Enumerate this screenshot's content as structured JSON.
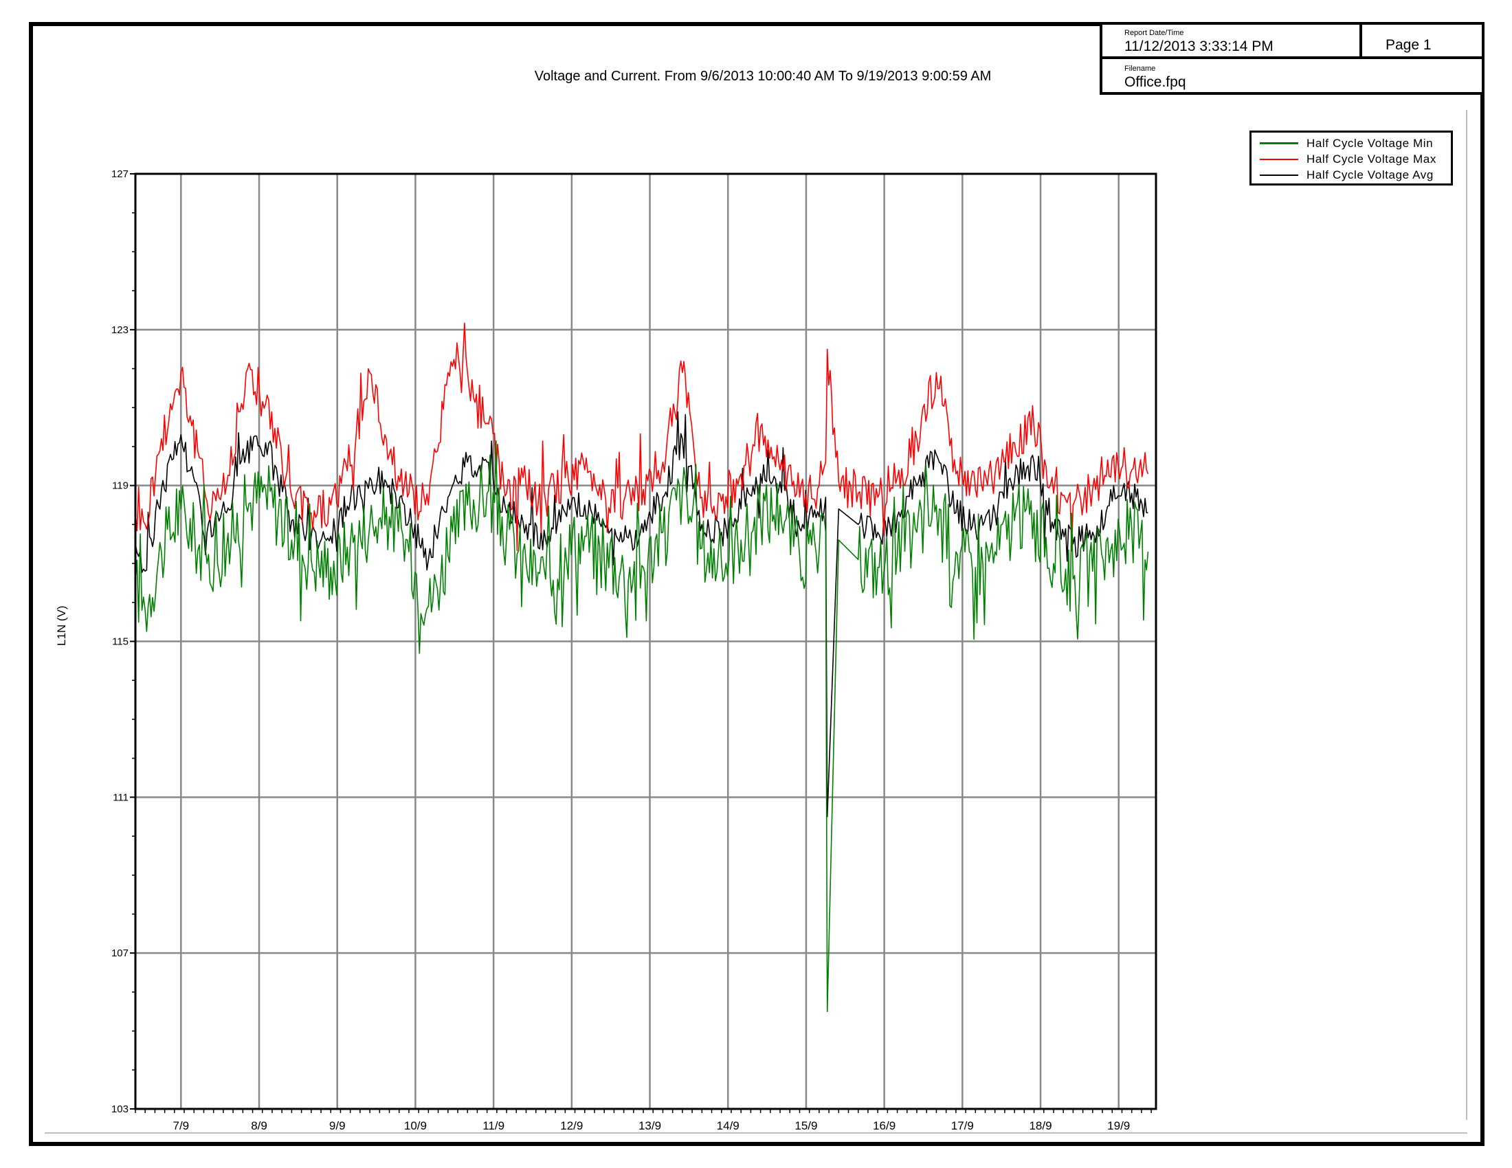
{
  "header": {
    "report_label": "Report Date/Time",
    "report_value": "11/12/2013 3:33:14 PM",
    "page_label": "Page 1",
    "filename_label": "Filename",
    "filename_value": "Office.fpq"
  },
  "chart_data": {
    "type": "line",
    "title": "Voltage and Current. From 9/6/2013 10:00:40 AM To 9/19/2013 9:00:59 AM",
    "ylabel": "L1N (V)",
    "xlabel": "",
    "ylim": [
      103,
      127
    ],
    "yticks": [
      103,
      107,
      111,
      115,
      119,
      123,
      127
    ],
    "x_range_days": [
      "9/6/2013 10:00:40",
      "9/19/2013 9:00:59"
    ],
    "xticks": [
      "7/9",
      "8/9",
      "9/9",
      "10/9",
      "11/9",
      "12/9",
      "13/9",
      "14/9",
      "15/9",
      "16/9",
      "17/9",
      "18/9",
      "19/9"
    ],
    "grid": true,
    "legend_position": "top-right",
    "series": [
      {
        "name": "Half Cycle Voltage Min",
        "color": "#008000",
        "x": [
          "9/6 10:00",
          "9/6 13:00",
          "9/6 18:00",
          "9/7 00:00",
          "9/7 08:00",
          "9/7 14:00",
          "9/7 20:00",
          "9/8 02:00",
          "9/8 10:00",
          "9/8 16:00",
          "9/8 22:00",
          "9/9 04:00",
          "9/9 10:00",
          "9/9 16:00",
          "9/9 22:00",
          "9/10 04:00",
          "9/10 10:00",
          "9/10 16:00",
          "9/10 22:00",
          "9/11 04:00",
          "9/11 10:00",
          "9/11 16:00",
          "9/11 22:00",
          "9/12 04:00",
          "9/12 10:00",
          "9/12 16:00",
          "9/12 22:00",
          "9/13 04:00",
          "9/13 10:00",
          "9/13 16:00",
          "9/13 22:00",
          "9/14 04:00",
          "9/14 10:00",
          "9/14 16:00",
          "9/14 22:00",
          "9/15 04:00",
          "9/15 06:00",
          "9/15 06:30",
          "9/15 10:00",
          "9/15 16:00",
          "9/15 22:00",
          "9/16 04:00",
          "9/16 10:00",
          "9/16 16:00",
          "9/16 22:00",
          "9/17 04:00",
          "9/17 10:00",
          "9/17 16:00",
          "9/17 22:00",
          "9/18 04:00",
          "9/18 10:00",
          "9/18 16:00",
          "9/18 22:00",
          "9/19 04:00",
          "9/19 09:00"
        ],
        "values": [
          116.5,
          115.8,
          117.3,
          118.4,
          117.0,
          117.4,
          118.5,
          118.9,
          117.6,
          117.1,
          116.9,
          117.5,
          118.0,
          118.2,
          117.3,
          115.9,
          117.2,
          118.5,
          118.8,
          117.7,
          117.0,
          116.6,
          117.4,
          117.7,
          117.1,
          116.8,
          116.9,
          117.8,
          118.9,
          117.4,
          117.0,
          117.6,
          118.2,
          118.5,
          117.2,
          117.3,
          117.8,
          105.5,
          117.6,
          117.1,
          116.9,
          117.2,
          117.8,
          118.5,
          117.3,
          116.9,
          117.3,
          118.1,
          118.3,
          117.0,
          116.6,
          116.8,
          117.5,
          117.9,
          117.3
        ]
      },
      {
        "name": "Half Cycle Voltage Max",
        "color": "#ff0000",
        "x": [
          "9/6 10:00",
          "9/6 13:00",
          "9/6 18:00",
          "9/7 00:00",
          "9/7 08:00",
          "9/7 14:00",
          "9/7 20:00",
          "9/8 02:00",
          "9/8 10:00",
          "9/8 16:00",
          "9/8 22:00",
          "9/9 04:00",
          "9/9 10:00",
          "9/9 16:00",
          "9/9 22:00",
          "9/10 04:00",
          "9/10 10:00",
          "9/10 16:00",
          "9/10 22:00",
          "9/11 04:00",
          "9/11 10:00",
          "9/11 16:00",
          "9/11 22:00",
          "9/12 04:00",
          "9/12 10:00",
          "9/12 16:00",
          "9/12 22:00",
          "9/13 04:00",
          "9/13 10:00",
          "9/13 16:00",
          "9/13 22:00",
          "9/14 04:00",
          "9/14 10:00",
          "9/14 16:00",
          "9/14 22:00",
          "9/15 04:00",
          "9/15 06:00",
          "9/15 06:30",
          "9/15 10:00",
          "9/15 16:00",
          "9/15 22:00",
          "9/16 04:00",
          "9/16 10:00",
          "9/16 16:00",
          "9/16 22:00",
          "9/17 04:00",
          "9/17 10:00",
          "9/17 16:00",
          "9/17 22:00",
          "9/18 04:00",
          "9/18 10:00",
          "9/18 16:00",
          "9/18 22:00",
          "9/19 04:00",
          "9/19 09:00"
        ],
        "values": [
          118.3,
          118.0,
          120.2,
          121.9,
          118.6,
          119.0,
          121.9,
          121.1,
          118.7,
          118.3,
          118.5,
          119.5,
          121.9,
          119.8,
          118.8,
          118.5,
          121.9,
          121.9,
          120.6,
          118.8,
          119.0,
          118.6,
          119.2,
          119.4,
          118.9,
          118.6,
          118.9,
          119.6,
          121.9,
          118.7,
          118.6,
          119.3,
          120.5,
          119.4,
          118.7,
          119.0,
          119.6,
          122.5,
          119.1,
          118.8,
          118.7,
          119.2,
          120.2,
          121.9,
          119.3,
          118.9,
          119.3,
          120.1,
          120.5,
          118.8,
          118.5,
          118.9,
          119.7,
          119.4,
          119.3
        ]
      },
      {
        "name": "Half Cycle Voltage Avg",
        "color": "#000000",
        "x": [
          "9/6 10:00",
          "9/6 13:00",
          "9/6 18:00",
          "9/7 00:00",
          "9/7 08:00",
          "9/7 14:00",
          "9/7 20:00",
          "9/8 02:00",
          "9/8 10:00",
          "9/8 16:00",
          "9/8 22:00",
          "9/9 04:00",
          "9/9 10:00",
          "9/9 16:00",
          "9/9 22:00",
          "9/10 04:00",
          "9/10 10:00",
          "9/10 16:00",
          "9/10 22:00",
          "9/11 04:00",
          "9/11 10:00",
          "9/11 16:00",
          "9/11 22:00",
          "9/12 04:00",
          "9/12 10:00",
          "9/12 16:00",
          "9/12 22:00",
          "9/13 04:00",
          "9/13 10:00",
          "9/13 16:00",
          "9/13 22:00",
          "9/14 04:00",
          "9/14 10:00",
          "9/14 16:00",
          "9/14 22:00",
          "9/15 04:00",
          "9/15 06:00",
          "9/15 06:30",
          "9/15 10:00",
          "9/15 16:00",
          "9/15 22:00",
          "9/16 04:00",
          "9/16 10:00",
          "9/16 16:00",
          "9/16 22:00",
          "9/17 04:00",
          "9/17 10:00",
          "9/17 16:00",
          "9/17 22:00",
          "9/18 04:00",
          "9/18 10:00",
          "9/18 16:00",
          "9/18 22:00",
          "9/19 04:00",
          "9/19 09:00"
        ],
        "values": [
          117.5,
          116.8,
          118.9,
          120.3,
          117.8,
          118.3,
          119.8,
          120.1,
          118.1,
          117.7,
          117.7,
          118.6,
          119.2,
          119.0,
          118.1,
          117.1,
          118.7,
          119.6,
          119.6,
          118.3,
          118.0,
          117.6,
          118.3,
          118.5,
          118.0,
          117.6,
          117.8,
          118.7,
          120.2,
          118.0,
          117.8,
          118.4,
          119.3,
          119.1,
          117.9,
          118.2,
          118.7,
          110.5,
          118.4,
          118.0,
          117.8,
          118.2,
          119.0,
          119.8,
          118.3,
          117.9,
          118.3,
          119.1,
          119.6,
          117.9,
          117.5,
          117.8,
          118.6,
          118.8,
          118.3
        ]
      }
    ]
  }
}
